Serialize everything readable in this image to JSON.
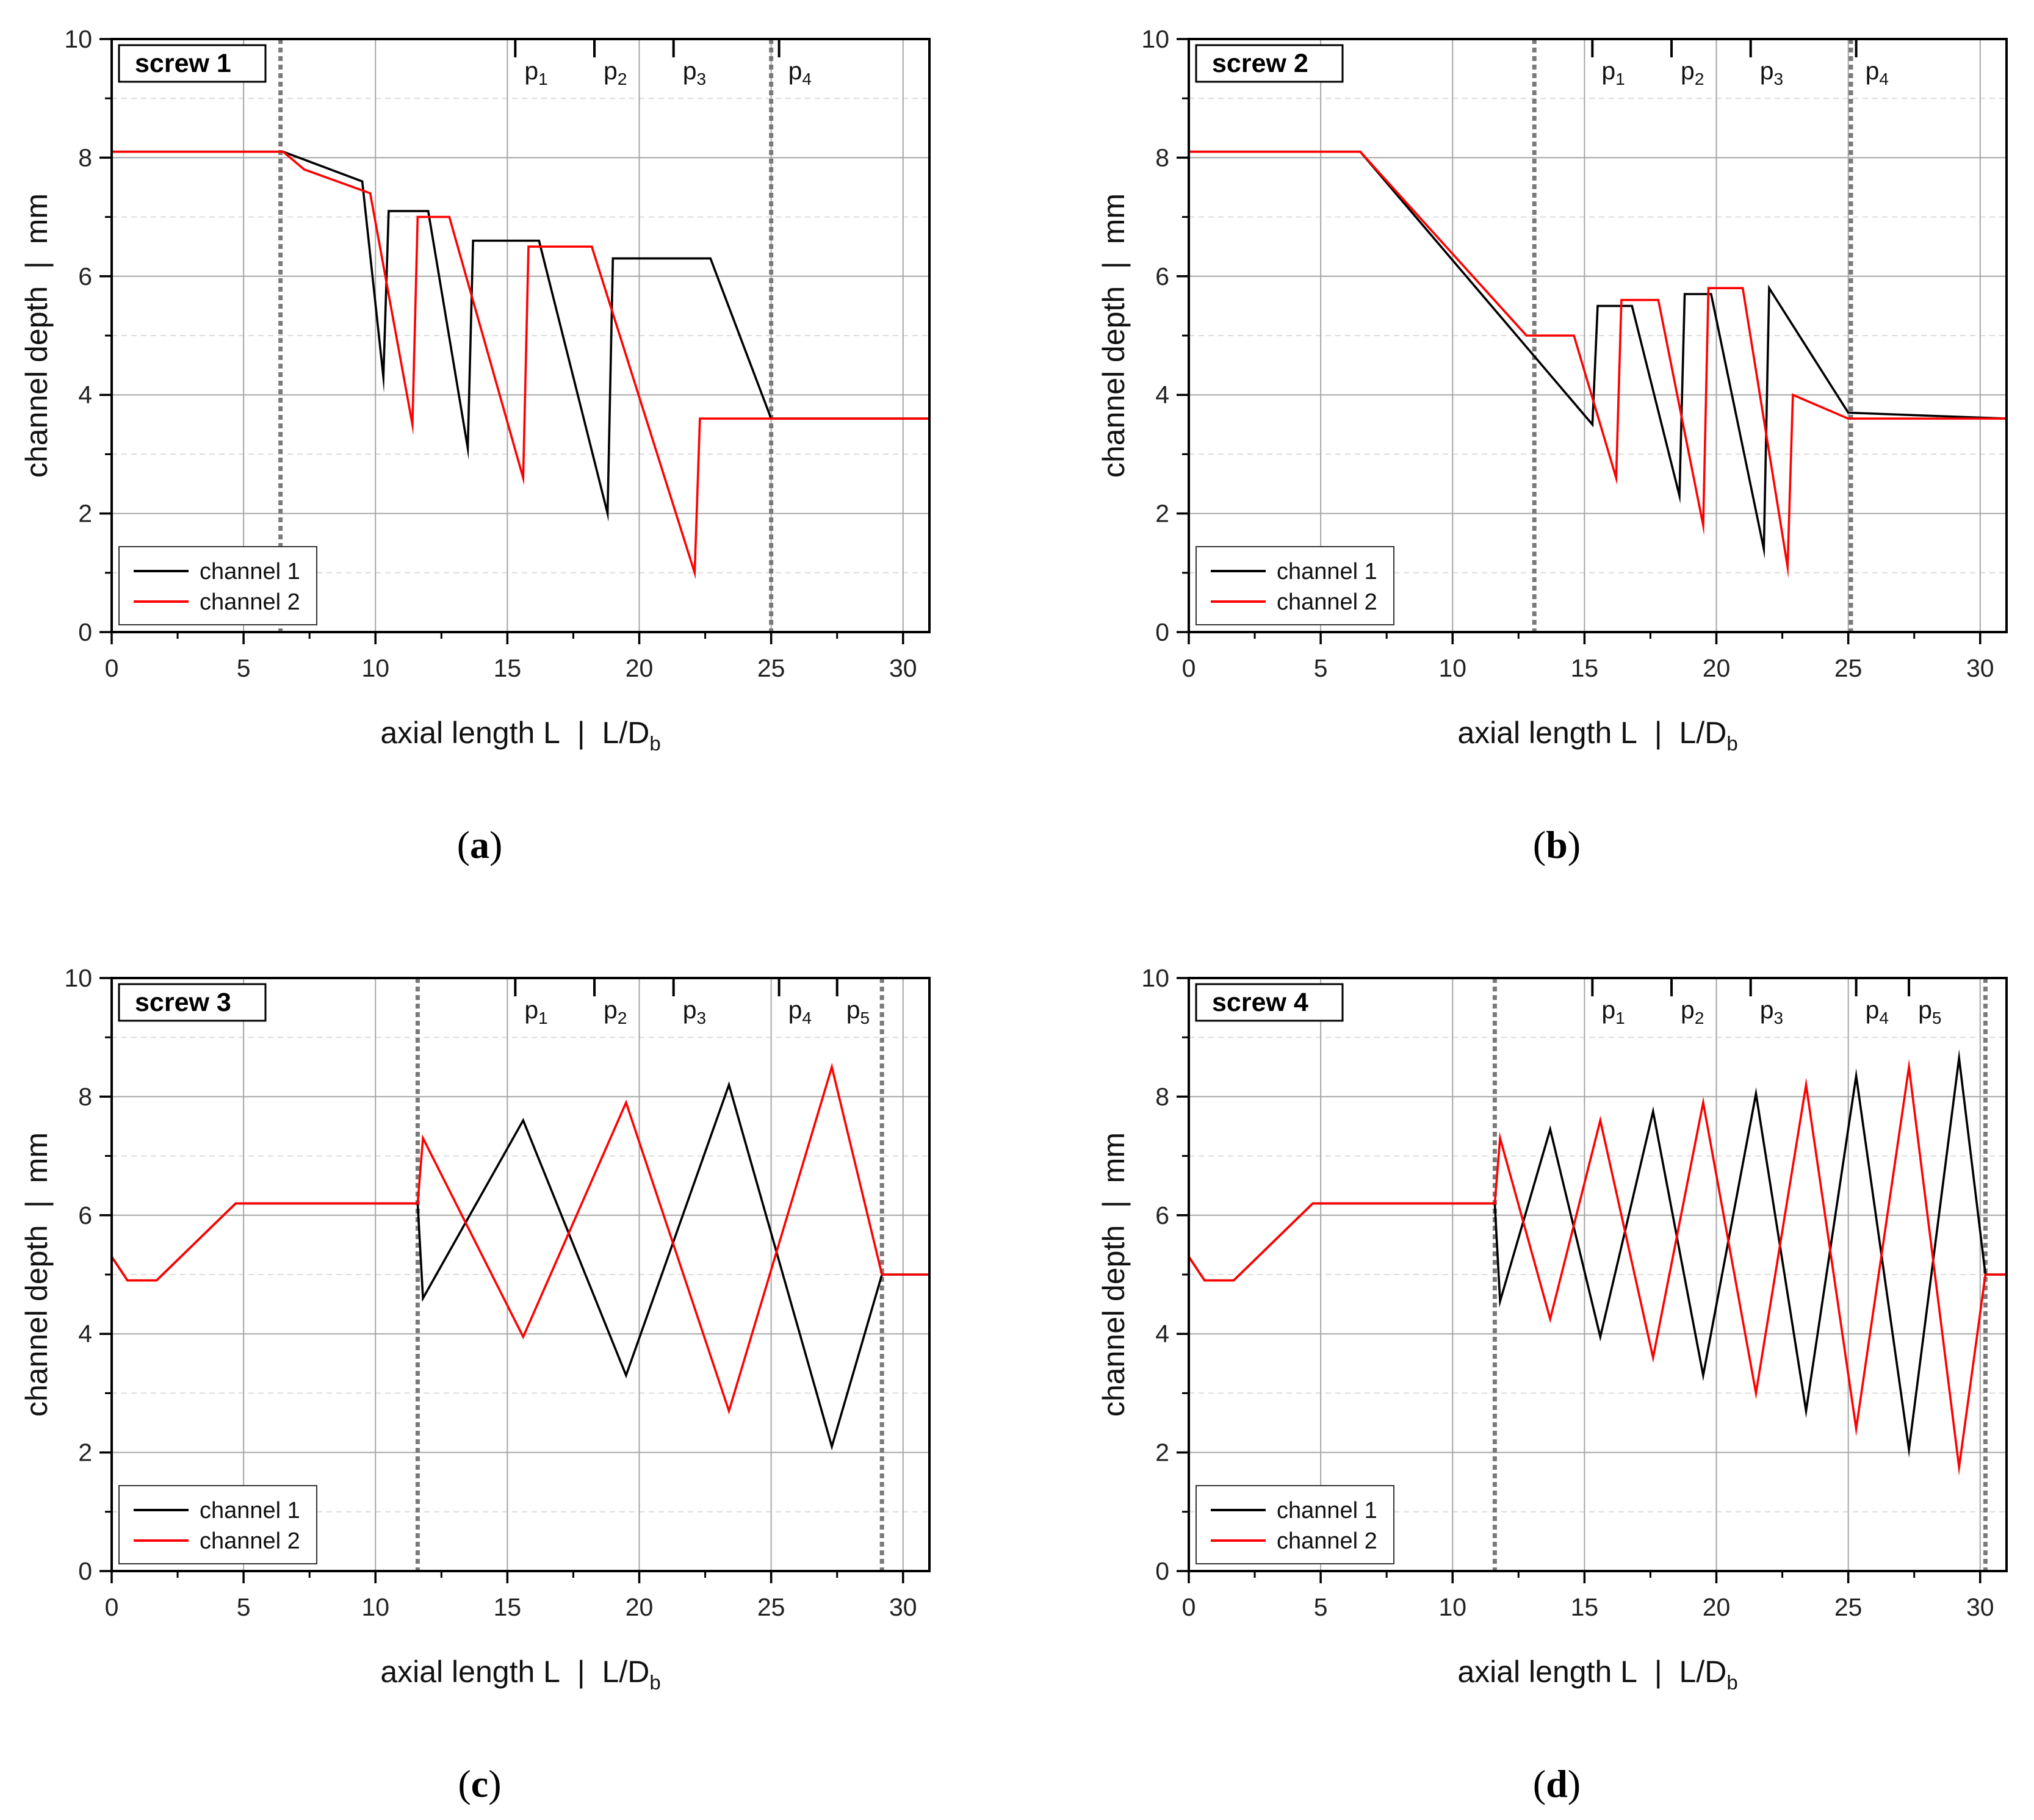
{
  "chart_data": [
    {
      "type": "line",
      "caption": "a",
      "screw_label": "screw 1",
      "xlabel": "axial length L  |  L/D",
      "xlabel_sub": "b",
      "ylabel": "channel depth  |  mm",
      "xlim": [
        0,
        31
      ],
      "ylim": [
        0,
        10
      ],
      "xticks": [
        0,
        5,
        10,
        15,
        20,
        25,
        30
      ],
      "yticks": [
        0,
        2,
        4,
        6,
        8,
        10
      ],
      "dividers": [
        6.4,
        25.0
      ],
      "markers": [
        {
          "label": "p",
          "sub": "1",
          "x": 15.3
        },
        {
          "label": "p",
          "sub": "2",
          "x": 18.3
        },
        {
          "label": "p",
          "sub": "3",
          "x": 21.3
        },
        {
          "label": "p",
          "sub": "4",
          "x": 25.3
        }
      ],
      "legend": [
        "channel 1",
        "channel 2"
      ],
      "series": [
        {
          "name": "channel 1",
          "color": "#000000",
          "x": [
            0,
            6.5,
            9.5,
            10.3,
            10.5,
            12.0,
            13.5,
            13.7,
            16.2,
            18.8,
            19.0,
            22.7,
            25.0,
            31
          ],
          "y": [
            8.1,
            8.1,
            7.6,
            4.3,
            7.1,
            7.1,
            3.1,
            6.6,
            6.6,
            2.0,
            6.3,
            6.3,
            3.6,
            3.6
          ]
        },
        {
          "name": "channel 2",
          "color": "#ff0000",
          "x": [
            0,
            6.5,
            7.3,
            9.8,
            11.4,
            11.6,
            12.8,
            15.6,
            15.8,
            18.2,
            22.1,
            22.3,
            25.0,
            31
          ],
          "y": [
            8.1,
            8.1,
            7.8,
            7.4,
            3.5,
            7.0,
            7.0,
            2.6,
            6.5,
            6.5,
            1.0,
            3.6,
            3.6,
            3.6
          ]
        }
      ]
    },
    {
      "type": "line",
      "caption": "b",
      "screw_label": "screw 2",
      "xlabel": "axial length L  |  L/D",
      "xlabel_sub": "b",
      "ylabel": "channel depth  |  mm",
      "xlim": [
        0,
        31
      ],
      "ylim": [
        0,
        10
      ],
      "xticks": [
        0,
        5,
        10,
        15,
        20,
        25,
        30
      ],
      "yticks": [
        0,
        2,
        4,
        6,
        8,
        10
      ],
      "dividers": [
        13.1,
        25.1
      ],
      "markers": [
        {
          "label": "p",
          "sub": "1",
          "x": 15.3
        },
        {
          "label": "p",
          "sub": "2",
          "x": 18.3
        },
        {
          "label": "p",
          "sub": "3",
          "x": 21.3
        },
        {
          "label": "p",
          "sub": "4",
          "x": 25.3
        }
      ],
      "legend": [
        "channel 1",
        "channel 2"
      ],
      "series": [
        {
          "name": "channel 1",
          "color": "#000000",
          "x": [
            0,
            6.5,
            15.3,
            15.5,
            16.8,
            18.6,
            18.8,
            19.8,
            21.8,
            22.0,
            25.0,
            31
          ],
          "y": [
            8.1,
            8.1,
            3.5,
            5.5,
            5.5,
            2.3,
            5.7,
            5.7,
            1.4,
            5.8,
            3.7,
            3.6
          ]
        },
        {
          "name": "channel 2",
          "color": "#ff0000",
          "x": [
            0,
            6.5,
            12.8,
            14.6,
            16.2,
            16.4,
            17.8,
            19.5,
            19.7,
            21.0,
            22.7,
            22.9,
            25.0,
            31
          ],
          "y": [
            8.1,
            8.1,
            5.0,
            5.0,
            2.6,
            5.6,
            5.6,
            1.8,
            5.8,
            5.8,
            1.1,
            4.0,
            3.6,
            3.6
          ]
        }
      ]
    },
    {
      "type": "line",
      "caption": "c",
      "screw_label": "screw 3",
      "xlabel": "axial length L  |  L/D",
      "xlabel_sub": "b",
      "ylabel": "channel depth  |  mm",
      "xlim": [
        0,
        31
      ],
      "ylim": [
        0,
        10
      ],
      "xticks": [
        0,
        5,
        10,
        15,
        20,
        25,
        30
      ],
      "yticks": [
        0,
        2,
        4,
        6,
        8,
        10
      ],
      "dividers": [
        11.6,
        29.2
      ],
      "markers": [
        {
          "label": "p",
          "sub": "1",
          "x": 15.3
        },
        {
          "label": "p",
          "sub": "2",
          "x": 18.3
        },
        {
          "label": "p",
          "sub": "3",
          "x": 21.3
        },
        {
          "label": "p",
          "sub": "4",
          "x": 25.3
        },
        {
          "label": "p",
          "sub": "5",
          "x": 27.5
        }
      ],
      "legend": [
        "channel 1",
        "channel 2"
      ],
      "series": [
        {
          "name": "channel 1",
          "color": "#000000",
          "x": [
            0,
            0.6,
            1.7,
            4.7,
            11.6,
            11.8,
            15.6,
            19.5,
            23.4,
            27.3,
            29.2,
            31
          ],
          "y": [
            5.3,
            4.9,
            4.9,
            6.2,
            6.2,
            4.6,
            7.6,
            3.3,
            8.2,
            2.1,
            5.0,
            5.0
          ]
        },
        {
          "name": "channel 2",
          "color": "#ff0000",
          "x": [
            0,
            0.6,
            1.7,
            4.7,
            11.6,
            11.8,
            15.6,
            19.5,
            23.4,
            27.3,
            29.2,
            31
          ],
          "y": [
            5.3,
            4.9,
            4.9,
            6.2,
            6.2,
            7.3,
            3.95,
            7.9,
            2.7,
            8.5,
            5.0,
            5.0
          ]
        }
      ]
    },
    {
      "type": "line",
      "caption": "d",
      "screw_label": "screw 4",
      "xlabel": "axial length L  |  L/D",
      "xlabel_sub": "b",
      "ylabel": "channel depth  |  mm",
      "xlim": [
        0,
        31
      ],
      "ylim": [
        0,
        10
      ],
      "xticks": [
        0,
        5,
        10,
        15,
        20,
        25,
        30
      ],
      "yticks": [
        0,
        2,
        4,
        6,
        8,
        10
      ],
      "dividers": [
        11.6,
        30.2
      ],
      "markers": [
        {
          "label": "p",
          "sub": "1",
          "x": 15.3
        },
        {
          "label": "p",
          "sub": "2",
          "x": 18.3
        },
        {
          "label": "p",
          "sub": "3",
          "x": 21.3
        },
        {
          "label": "p",
          "sub": "4",
          "x": 25.3
        },
        {
          "label": "p",
          "sub": "5",
          "x": 27.3
        }
      ],
      "legend": [
        "channel 1",
        "channel 2"
      ],
      "series": [
        {
          "name": "channel 1",
          "color": "#000000",
          "x": [
            0,
            0.6,
            1.7,
            4.7,
            11.6,
            11.8,
            13.7,
            15.6,
            17.6,
            19.5,
            21.5,
            23.4,
            25.3,
            27.3,
            29.2,
            30.2,
            31
          ],
          "y": [
            5.3,
            4.9,
            4.9,
            6.2,
            6.2,
            4.55,
            7.45,
            3.95,
            7.75,
            3.3,
            8.05,
            2.7,
            8.35,
            2.05,
            8.65,
            5.0,
            5.0
          ]
        },
        {
          "name": "channel 2",
          "color": "#ff0000",
          "x": [
            0,
            0.6,
            1.7,
            4.7,
            11.6,
            11.8,
            13.7,
            15.6,
            17.6,
            19.5,
            21.5,
            23.4,
            25.3,
            27.3,
            29.2,
            30.2,
            31
          ],
          "y": [
            5.3,
            4.9,
            4.9,
            6.2,
            6.2,
            7.3,
            4.25,
            7.6,
            3.6,
            7.9,
            3.0,
            8.2,
            2.4,
            8.5,
            1.75,
            5.0,
            5.0
          ]
        }
      ]
    }
  ]
}
